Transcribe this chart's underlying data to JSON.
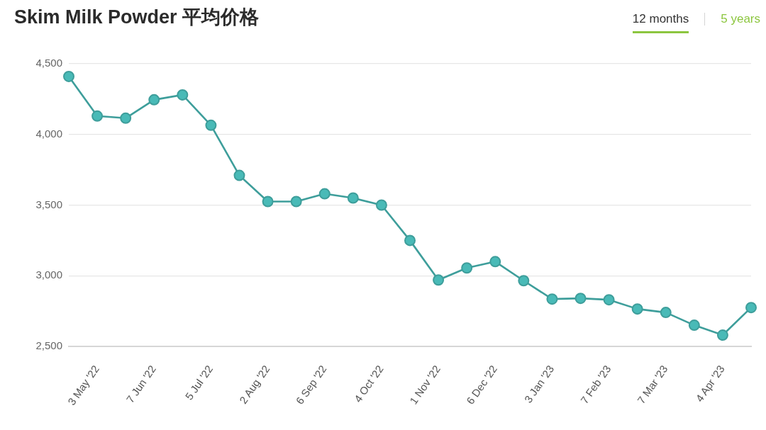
{
  "chart_data": {
    "type": "line",
    "title": "Skim Milk Powder 平均价格",
    "annotations": [
      "12 months",
      "5 years"
    ],
    "categories": [
      null,
      "3 May '22",
      null,
      "7 Jun '22",
      null,
      "5 Jul '22",
      null,
      "2 Aug '22",
      null,
      "6 Sep '22",
      null,
      "4 Oct '22",
      null,
      "1 Nov '22",
      null,
      "6 Dec '22",
      null,
      "3 Jan '23",
      null,
      "7 Feb '23",
      null,
      "7 Mar '23",
      null,
      "4 Apr '23",
      null
    ],
    "values": [
      4410,
      4130,
      4115,
      4245,
      4280,
      4065,
      3710,
      3525,
      3525,
      3580,
      3550,
      3500,
      3250,
      2970,
      3055,
      3100,
      2965,
      2835,
      2840,
      2830,
      2765,
      2740,
      2650,
      2580,
      2775
    ],
    "color": "#3e9e9b",
    "ylim": [
      2500,
      4500
    ],
    "yticks": [
      {
        "value": 2500,
        "label": "2,500"
      },
      {
        "value": 3000,
        "label": "3,000"
      },
      {
        "value": 3500,
        "label": "3,500"
      },
      {
        "value": 4000,
        "label": "4,000"
      },
      {
        "value": 4500,
        "label": "4,500"
      }
    ],
    "grid": "y",
    "marker": "circle",
    "line_style": "solid"
  }
}
